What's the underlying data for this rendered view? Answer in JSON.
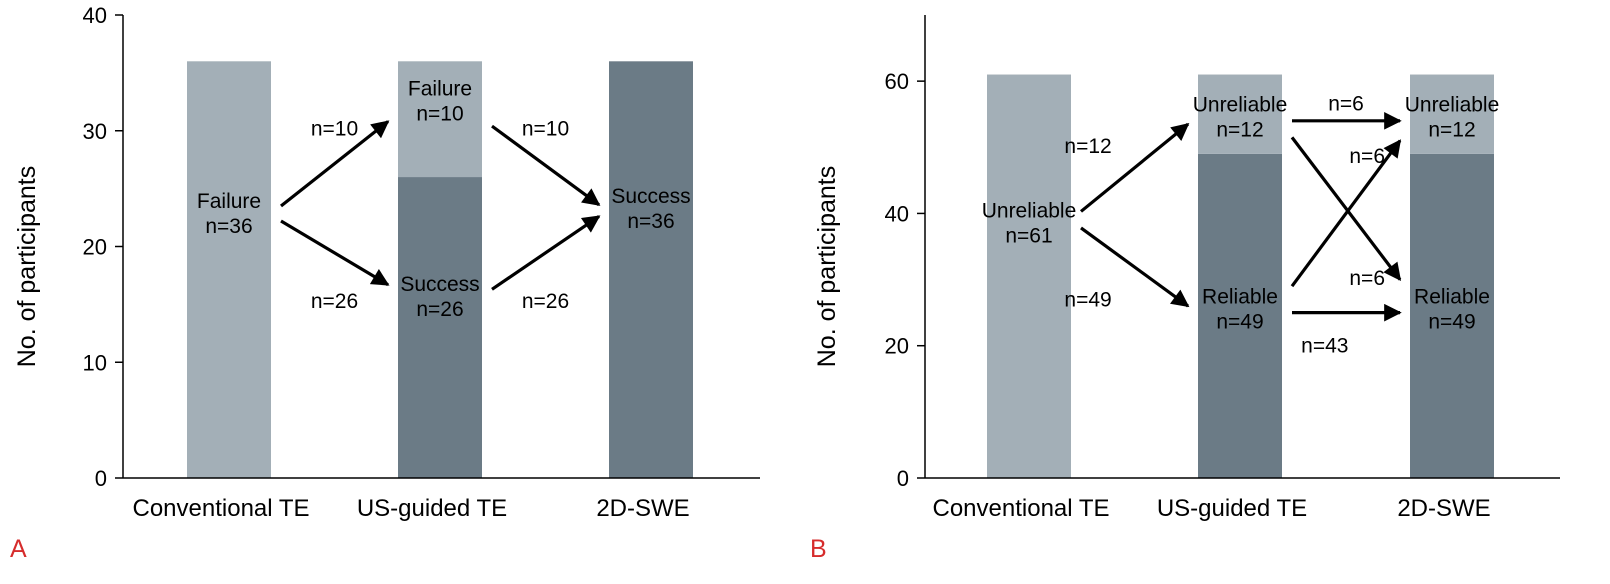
{
  "colors": {
    "light": "#a3afb7",
    "dark": "#6b7b86",
    "panel_letter": "#d62c2c",
    "axis": "#000000"
  },
  "chart_data": [
    {
      "panel": "A",
      "type": "stacked-bar-flow",
      "ylabel": "No. of participants",
      "ylim": [
        0,
        40
      ],
      "yticks": [
        "0",
        "10",
        "20",
        "30",
        "40"
      ],
      "categories": [
        "Conventional TE",
        "US-guided TE",
        "2D-SWE"
      ],
      "bars": [
        {
          "category": "Conventional TE",
          "segments": [
            {
              "value": 36,
              "shade": "light",
              "label": [
                "Failure",
                "n=36"
              ],
              "labelValue": 23
            }
          ]
        },
        {
          "category": "US-guided TE",
          "segments": [
            {
              "value": 26,
              "shade": "dark",
              "label": [
                "Success",
                "n=26"
              ],
              "labelValue": 15.8
            },
            {
              "value": 10,
              "shade": "light",
              "label": [
                "Failure",
                "n=10"
              ],
              "labelValue": 32.7
            }
          ]
        },
        {
          "category": "2D-SWE",
          "segments": [
            {
              "value": 36,
              "shade": "dark",
              "label": [
                "Success",
                "n=36"
              ],
              "labelValue": 23.4
            }
          ]
        }
      ],
      "flows": [
        {
          "label": "n=10",
          "from": [
            0,
            23.5
          ],
          "to": [
            1,
            30.8
          ],
          "labelAt": [
            0.5,
            30.2
          ]
        },
        {
          "label": "n=26",
          "from": [
            0,
            22.2
          ],
          "to": [
            1,
            16.7
          ],
          "labelAt": [
            0.5,
            15.3
          ]
        },
        {
          "label": "n=10",
          "from": [
            1,
            30.4
          ],
          "to": [
            2,
            23.6
          ],
          "labelAt": [
            1.5,
            30.2
          ]
        },
        {
          "label": "n=26",
          "from": [
            1,
            16.3
          ],
          "to": [
            2,
            22.6
          ],
          "labelAt": [
            1.5,
            15.3
          ]
        }
      ]
    },
    {
      "panel": "B",
      "type": "stacked-bar-flow",
      "ylabel": "No. of participants",
      "ylim": [
        0,
        70
      ],
      "yticks": [
        "0",
        "20",
        "40",
        "60"
      ],
      "categories": [
        "Conventional TE",
        "US-guided TE",
        "2D-SWE"
      ],
      "bars": [
        {
          "category": "Conventional TE",
          "segments": [
            {
              "value": 61,
              "shade": "light",
              "label": [
                "Unreliable",
                "n=61"
              ],
              "labelValue": 38.8
            }
          ]
        },
        {
          "category": "US-guided TE",
          "segments": [
            {
              "value": 49,
              "shade": "dark",
              "label": [
                "Reliable",
                "n=49"
              ],
              "labelValue": 25.8
            },
            {
              "value": 12,
              "shade": "light",
              "label": [
                "Unreliable",
                "n=12"
              ],
              "labelValue": 54.8
            }
          ]
        },
        {
          "category": "2D-SWE",
          "segments": [
            {
              "value": 49,
              "shade": "dark",
              "label": [
                "Reliable",
                "n=49"
              ],
              "labelValue": 25.8
            },
            {
              "value": 12,
              "shade": "light",
              "label": [
                "Unreliable",
                "n=12"
              ],
              "labelValue": 54.8
            }
          ]
        }
      ],
      "flows": [
        {
          "label": "n=12",
          "from": [
            0,
            40.3
          ],
          "to": [
            1,
            53.5
          ],
          "labelAt": [
            0.28,
            50.2
          ]
        },
        {
          "label": "n=49",
          "from": [
            0,
            37.8
          ],
          "to": [
            1,
            26.0
          ],
          "labelAt": [
            0.28,
            27.0
          ]
        },
        {
          "label": "n=6",
          "from": [
            1,
            54.0
          ],
          "to": [
            2,
            54.0
          ],
          "labelAt": [
            1.5,
            56.6
          ]
        },
        {
          "label": "n=6",
          "from": [
            1,
            51.5
          ],
          "to": [
            2,
            30.0
          ],
          "labelAt": [
            1.6,
            48.7
          ]
        },
        {
          "label": "n=6",
          "from": [
            1,
            29.0
          ],
          "to": [
            2,
            51.0
          ],
          "labelAt": [
            1.6,
            30.2
          ]
        },
        {
          "label": "n=43",
          "from": [
            1,
            25.0
          ],
          "to": [
            2,
            25.0
          ],
          "labelAt": [
            1.4,
            20.0
          ]
        }
      ]
    }
  ]
}
